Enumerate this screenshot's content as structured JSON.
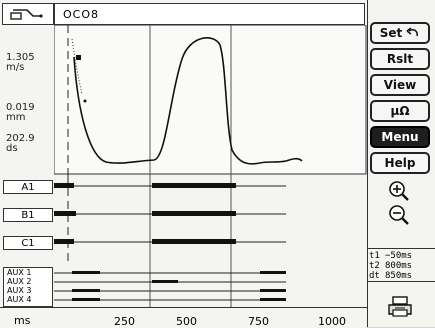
{
  "header": {
    "file_name": "OCO8",
    "icon": "tape-measure-icon"
  },
  "left_labels": {
    "velocity": "1.305\nm/s",
    "travel": "0.019\nmm",
    "time": "202.9\nds"
  },
  "channels": [
    {
      "label": "A1"
    },
    {
      "label": "B1"
    },
    {
      "label": "C1"
    }
  ],
  "aux_channels": [
    "AUX 1",
    "AUX 2",
    "AUX 3",
    "AUX 4"
  ],
  "x_axis": {
    "unit": "ms",
    "ticks": [
      "250",
      "500",
      "750",
      "1000"
    ]
  },
  "sidebar": {
    "set_label": "Set",
    "set_icon": "undo-arrow-icon",
    "rslt_label": "Rslt",
    "view_label": "View",
    "micro_ohm_label": "µΩ",
    "menu_label": "Menu",
    "help_label": "Help",
    "zoom_in_icon": "zoom-in-icon",
    "zoom_out_icon": "zoom-out-icon",
    "print_icon": "printer-icon"
  },
  "cursors": {
    "t1_label": "t1",
    "t1_value": "−50ms",
    "t2_label": "t2",
    "t2_value": "800ms",
    "dt_label": "dt",
    "dt_value": "850ms"
  },
  "colors": {
    "background": "#f4f4f0",
    "ink": "#111111"
  }
}
